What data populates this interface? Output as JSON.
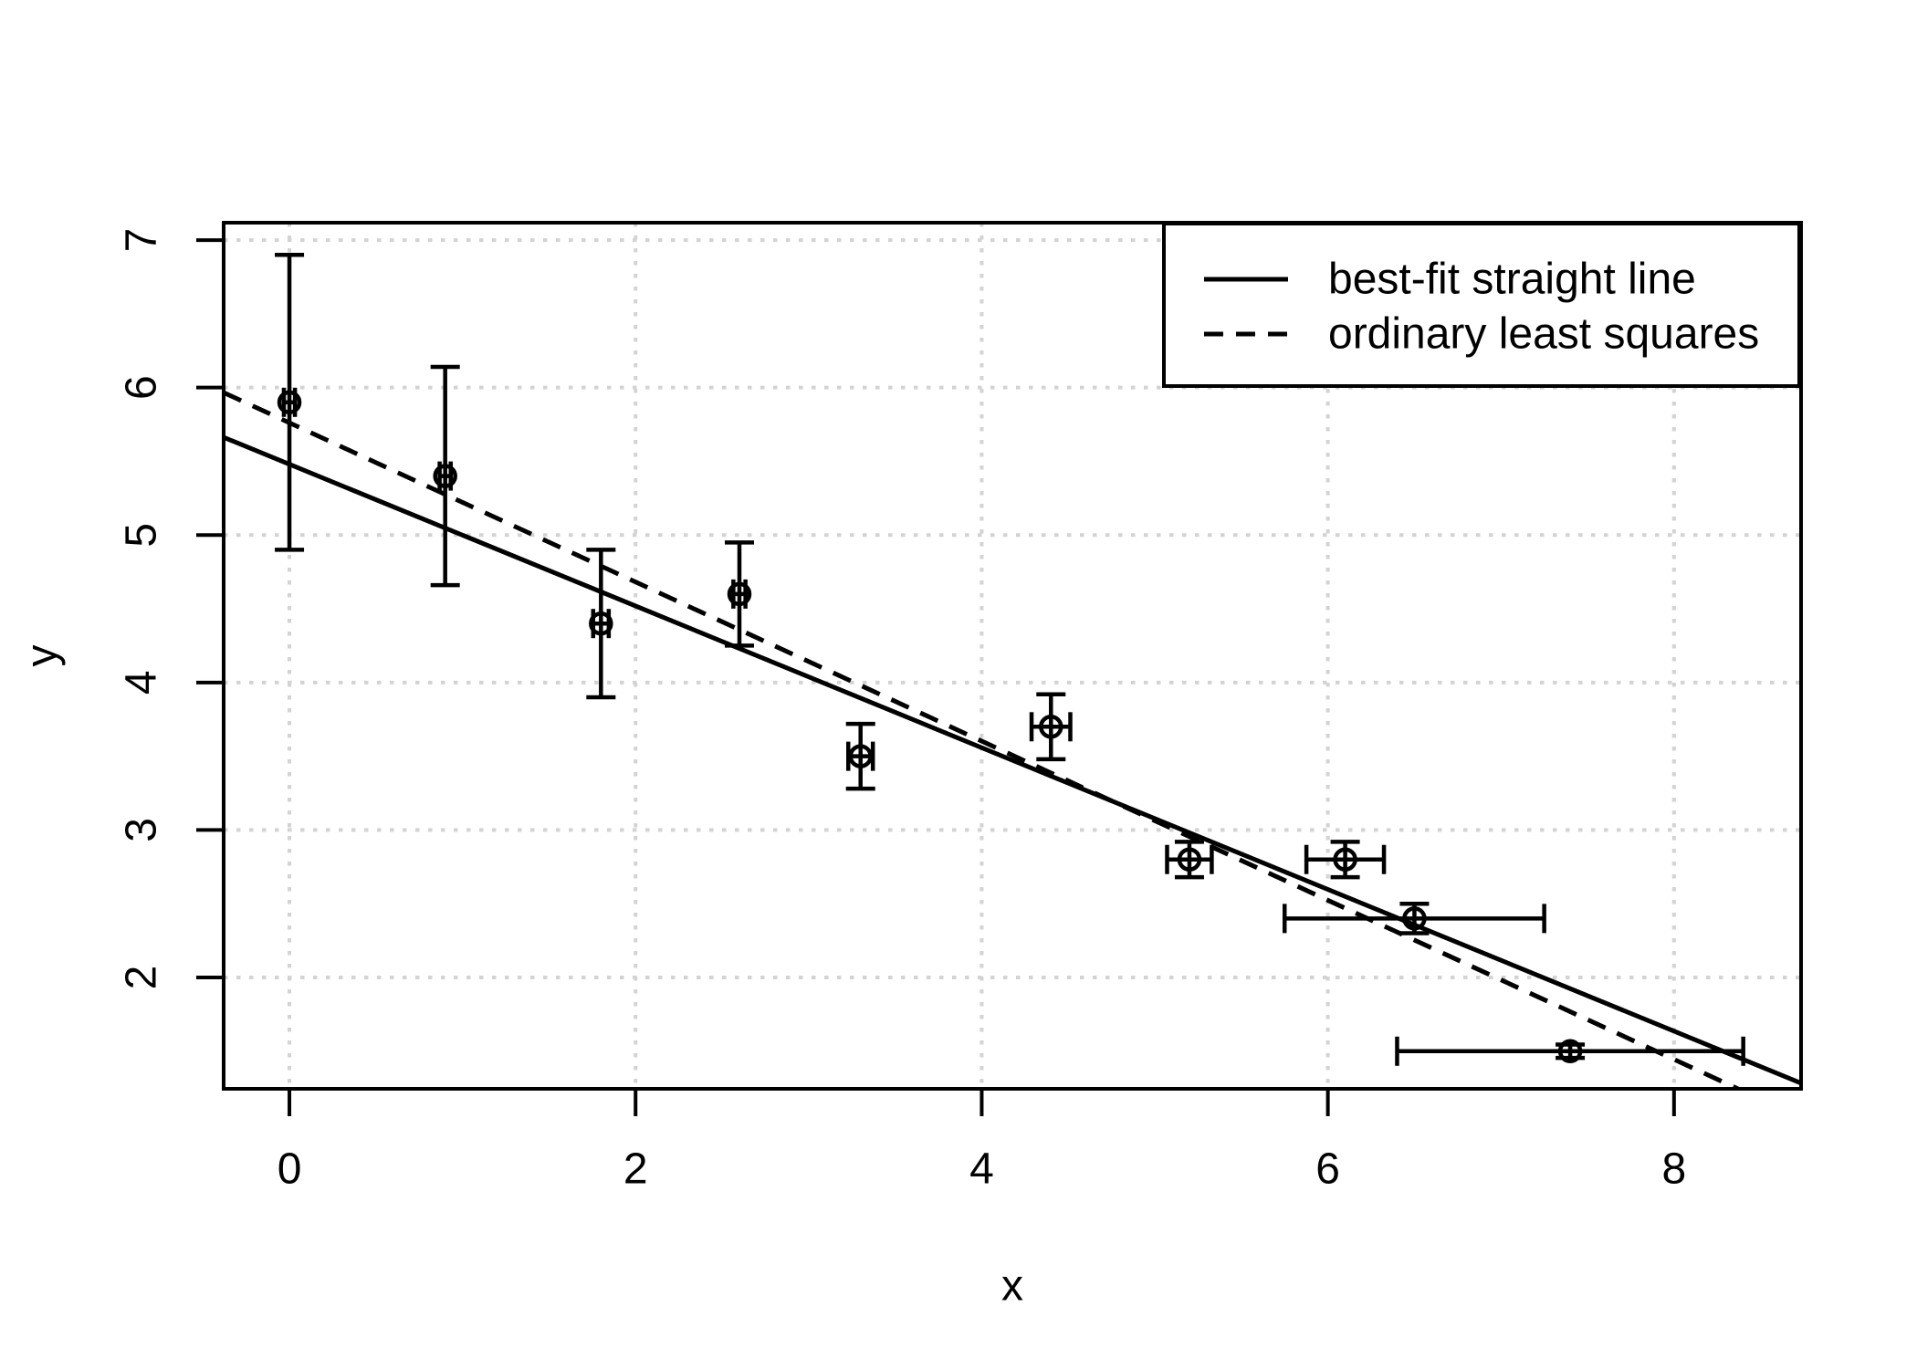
{
  "chart_data": {
    "type": "scatter",
    "title": "",
    "xlabel": "x",
    "ylabel": "y",
    "xlim": [
      -0.38,
      8.734
    ],
    "ylim": [
      1.245,
      7.118
    ],
    "xticks": [
      0,
      2,
      4,
      6,
      8
    ],
    "yticks": [
      2,
      3,
      4,
      5,
      6,
      7
    ],
    "xtick_labels": [
      "0",
      "2",
      "4",
      "6",
      "8"
    ],
    "ytick_labels": [
      "2",
      "3",
      "4",
      "5",
      "6",
      "7"
    ],
    "grid": true,
    "grid_style": "dotted",
    "points": [
      {
        "x": 0.0,
        "y": 5.9,
        "xerr": 0.032,
        "yerr": 1.0
      },
      {
        "x": 0.9,
        "y": 5.4,
        "xerr": 0.032,
        "yerr": 0.74
      },
      {
        "x": 1.8,
        "y": 4.4,
        "xerr": 0.045,
        "yerr": 0.5
      },
      {
        "x": 2.6,
        "y": 4.6,
        "xerr": 0.035,
        "yerr": 0.35
      },
      {
        "x": 3.3,
        "y": 3.5,
        "xerr": 0.071,
        "yerr": 0.22
      },
      {
        "x": 4.4,
        "y": 3.7,
        "xerr": 0.112,
        "yerr": 0.22
      },
      {
        "x": 5.2,
        "y": 2.8,
        "xerr": 0.129,
        "yerr": 0.12
      },
      {
        "x": 6.1,
        "y": 2.8,
        "xerr": 0.224,
        "yerr": 0.12
      },
      {
        "x": 6.5,
        "y": 2.4,
        "xerr": 0.75,
        "yerr": 0.1
      },
      {
        "x": 7.4,
        "y": 1.5,
        "xerr": 1.0,
        "yerr": 0.045
      }
    ],
    "fit_lines": [
      {
        "label": "best-fit straight line",
        "style": "solid",
        "slope": -0.4805,
        "intercept": 5.48
      },
      {
        "label": "ordinary least squares",
        "style": "dashed",
        "slope": -0.5396,
        "intercept": 5.7612
      }
    ],
    "legend": {
      "position": "topright",
      "entries": [
        {
          "label": "best-fit straight line",
          "style": "solid"
        },
        {
          "label": "ordinary least squares",
          "style": "dashed"
        }
      ]
    },
    "colors": {
      "foreground": "#000000",
      "background": "#FFFFFF",
      "grid": "#D3D3D3"
    }
  }
}
